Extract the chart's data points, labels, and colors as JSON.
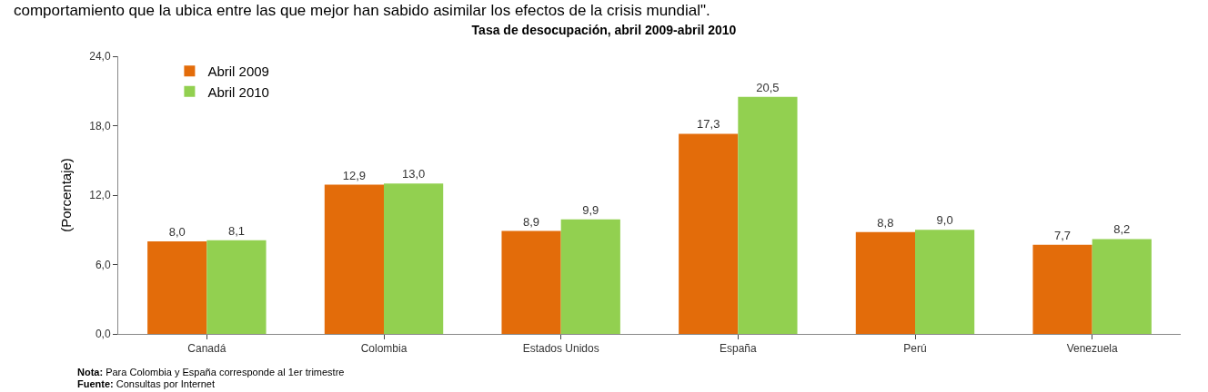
{
  "chart_data": {
    "type": "bar",
    "title": "Tasa de desocupación, abril 2009-abril 2010",
    "ylabel": "(Porcentaje)",
    "categories": [
      "Canadá",
      "Colombia",
      "Estados Unidos",
      "España",
      "Perú",
      "Venezuela"
    ],
    "series": [
      {
        "name": "Abril 2009",
        "color": "#e36c0a",
        "values": [
          8.0,
          12.9,
          8.9,
          17.3,
          8.8,
          7.7
        ],
        "value_labels": [
          "8,0",
          "12,9",
          "8,9",
          "17,3",
          "8,8",
          "7,7"
        ]
      },
      {
        "name": "Abril 2010",
        "color": "#92d050",
        "values": [
          8.1,
          13.0,
          9.9,
          20.5,
          9.0,
          8.2
        ],
        "value_labels": [
          "8,1",
          "13,0",
          "9,9",
          "20,5",
          "9,0",
          "8,2"
        ]
      }
    ],
    "ylim": [
      0,
      24
    ],
    "yticks": [
      {
        "value": 0,
        "label": "0,0"
      },
      {
        "value": 6,
        "label": "6,0"
      },
      {
        "value": 12,
        "label": "12,0"
      },
      {
        "value": 18,
        "label": "18,0"
      },
      {
        "value": 24,
        "label": "24,0"
      }
    ],
    "legend": "top left",
    "annotations": [
      "comportamiento que la ubica entre las que mejor han sabido asimilar los efectos de la crisis mundial\".",
      "Nota: Para Colombia y España corresponde al 1er trimestre",
      "Fuente: Consultas por Internet"
    ]
  }
}
